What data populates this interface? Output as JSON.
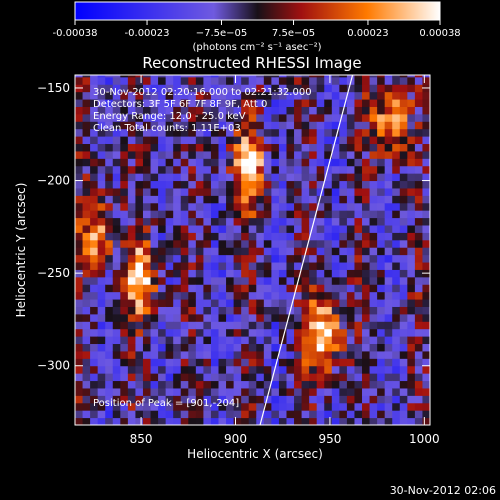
{
  "colorbar": {
    "ticks": [
      -0.00038,
      -0.00023,
      -7.5e-05,
      7.5e-05,
      0.00023,
      0.00038
    ],
    "tick_labels": [
      "-0.00038",
      "-0.00023",
      "−7.5e−05",
      "7.5e−05",
      "0.00023",
      "0.00038"
    ],
    "units": "(photons cm⁻² s⁻¹ asec⁻²)",
    "range": [
      -0.00038,
      0.00038
    ]
  },
  "chart_data": {
    "type": "heatmap",
    "title": "Reconstructed RHESSI Image",
    "xlabel": "Heliocentric X (arcsec)",
    "ylabel": "Heliocentric Y (arcsec)",
    "xlim": [
      815,
      1003
    ],
    "ylim": [
      -332,
      -143
    ],
    "x_ticks": [
      850,
      900,
      950,
      1000
    ],
    "y_ticks": [
      -150,
      -200,
      -250,
      -300
    ],
    "limb_line": [
      [
        913,
        -332
      ],
      [
        962,
        -143
      ]
    ],
    "bright_regions": [
      {
        "x": 905,
        "y": -195,
        "level": 0.9
      },
      {
        "x": 848,
        "y": -255,
        "level": 0.85
      },
      {
        "x": 945,
        "y": -285,
        "level": 1.0
      },
      {
        "x": 980,
        "y": -170,
        "level": 0.8
      },
      {
        "x": 825,
        "y": -230,
        "level": 0.7
      }
    ],
    "annotations": [
      "30-Nov-2012 02:20:16.000 to 02:21:32.000",
      "Detectors: 3F 5F 6F 7F 8F 9F, Att 0",
      "Energy Range: 12.0 - 25.0 keV",
      "Clean    Total counts: 1.11E+03"
    ],
    "peak_label": "Position of Peak = [901,-204]"
  },
  "footer_date": "30-Nov-2012 02:06"
}
